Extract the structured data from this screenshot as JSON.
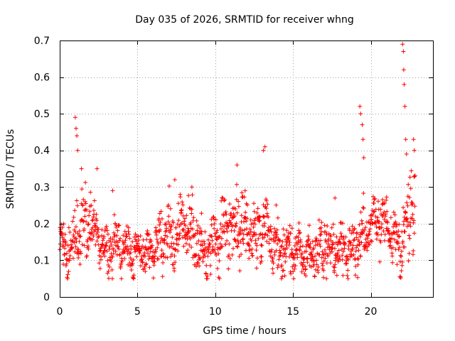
{
  "chart_data": {
    "type": "scatter",
    "title": "Day 035 of 2026, SRMTID for receiver whng",
    "xlabel": "GPS time / hours",
    "ylabel": "SRMTID / TECUs",
    "xlim": [
      0,
      24
    ],
    "ylim": [
      0,
      0.7
    ],
    "x_ticks": [
      0,
      5,
      10,
      15,
      20
    ],
    "x_tick_labels": [
      "0",
      "5",
      "10",
      "15",
      "20"
    ],
    "y_ticks": [
      0,
      0.1,
      0.2,
      0.3,
      0.4,
      0.5,
      0.6,
      0.7
    ],
    "y_tick_labels": [
      "0",
      "0.1",
      "0.2",
      "0.3",
      "0.4",
      "0.5",
      "0.6",
      "0.7"
    ],
    "grid": true,
    "marker": "+",
    "series_color": "#ff0000",
    "data_end_hours": 22.85,
    "envelope": {
      "note": "approximate typical level and spread of the SRMTID points read from the plot",
      "hours": [
        0,
        0.5,
        1.0,
        1.5,
        2.0,
        2.5,
        3.0,
        3.5,
        4.0,
        4.5,
        5.0,
        5.5,
        6.0,
        6.5,
        7.0,
        7.5,
        8.0,
        8.5,
        9.0,
        9.5,
        10.0,
        10.5,
        11.0,
        11.5,
        12.0,
        12.5,
        13.0,
        13.5,
        14.0,
        14.5,
        15.0,
        15.5,
        16.0,
        16.5,
        17.0,
        17.5,
        18.0,
        18.5,
        19.0,
        19.5,
        20.0,
        20.5,
        21.0,
        21.5,
        22.0,
        22.5,
        22.85
      ],
      "center": [
        0.13,
        0.12,
        0.15,
        0.2,
        0.22,
        0.16,
        0.13,
        0.15,
        0.14,
        0.13,
        0.12,
        0.12,
        0.13,
        0.15,
        0.17,
        0.18,
        0.2,
        0.18,
        0.13,
        0.13,
        0.15,
        0.18,
        0.2,
        0.2,
        0.19,
        0.17,
        0.2,
        0.17,
        0.13,
        0.13,
        0.13,
        0.12,
        0.11,
        0.12,
        0.14,
        0.13,
        0.13,
        0.12,
        0.12,
        0.16,
        0.2,
        0.21,
        0.2,
        0.15,
        0.14,
        0.24,
        0.27
      ],
      "spread": [
        0.04,
        0.05,
        0.06,
        0.07,
        0.06,
        0.05,
        0.05,
        0.06,
        0.05,
        0.05,
        0.04,
        0.04,
        0.05,
        0.06,
        0.07,
        0.06,
        0.06,
        0.06,
        0.05,
        0.05,
        0.06,
        0.07,
        0.07,
        0.07,
        0.06,
        0.06,
        0.07,
        0.06,
        0.05,
        0.05,
        0.05,
        0.04,
        0.04,
        0.05,
        0.06,
        0.05,
        0.04,
        0.04,
        0.05,
        0.08,
        0.05,
        0.05,
        0.05,
        0.04,
        0.05,
        0.09,
        0.07
      ]
    },
    "spikes": [
      {
        "hours": 1.0,
        "value": 0.49
      },
      {
        "hours": 1.05,
        "value": 0.46
      },
      {
        "hours": 1.1,
        "value": 0.44
      },
      {
        "hours": 1.15,
        "value": 0.4
      },
      {
        "hours": 1.4,
        "value": 0.35
      },
      {
        "hours": 2.4,
        "value": 0.35
      },
      {
        "hours": 3.4,
        "value": 0.29
      },
      {
        "hours": 7.4,
        "value": 0.32
      },
      {
        "hours": 8.5,
        "value": 0.3
      },
      {
        "hours": 11.4,
        "value": 0.36
      },
      {
        "hours": 13.1,
        "value": 0.4
      },
      {
        "hours": 13.2,
        "value": 0.41
      },
      {
        "hours": 17.7,
        "value": 0.27
      },
      {
        "hours": 19.3,
        "value": 0.52
      },
      {
        "hours": 19.35,
        "value": 0.5
      },
      {
        "hours": 19.45,
        "value": 0.47
      },
      {
        "hours": 19.5,
        "value": 0.43
      },
      {
        "hours": 19.55,
        "value": 0.38
      },
      {
        "hours": 22.05,
        "value": 0.69
      },
      {
        "hours": 22.1,
        "value": 0.67
      },
      {
        "hours": 22.12,
        "value": 0.62
      },
      {
        "hours": 22.15,
        "value": 0.58
      },
      {
        "hours": 22.2,
        "value": 0.52
      },
      {
        "hours": 22.25,
        "value": 0.43
      },
      {
        "hours": 22.3,
        "value": 0.39
      },
      {
        "hours": 22.75,
        "value": 0.43
      },
      {
        "hours": 22.8,
        "value": 0.4
      }
    ]
  }
}
